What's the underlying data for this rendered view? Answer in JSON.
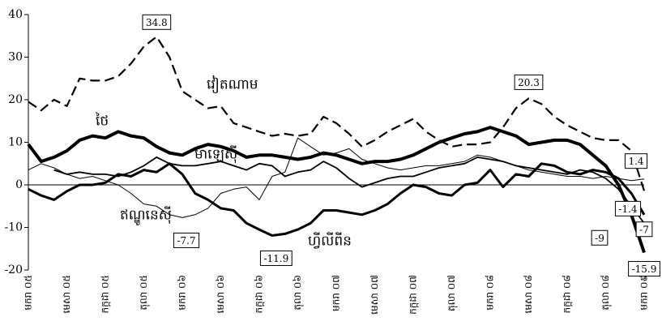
{
  "chart_data": {
    "type": "line",
    "categories": [
      "មករា ០៥",
      null,
      null,
      "មេសា ០៥",
      null,
      null,
      "កក្កដា ០៥",
      null,
      null,
      "តុលា ០៥",
      null,
      null,
      "មករា ០៦",
      null,
      null,
      "មេសា ០៦",
      null,
      null,
      "កក្កដា ០៦",
      null,
      null,
      "តុលា ០៦",
      null,
      null,
      "មករា ០៧",
      null,
      null,
      "មេសា ០៧",
      null,
      null,
      "កក្កដា ០៧",
      null,
      null,
      "តុលា ០៧",
      null,
      null,
      "មករា ០៨",
      null,
      null,
      "មេសា ០៨",
      null,
      null,
      "កក្កដា ០៨",
      null,
      null,
      "តុលា ០៨",
      null,
      null,
      "មករា ០៩"
    ],
    "ylim": [
      -20,
      40
    ],
    "yticks": [
      -20,
      -10,
      0,
      10,
      20,
      30,
      40
    ],
    "series": [
      {
        "name": "វៀតណាម",
        "color": "#000000",
        "line_width": 2.2,
        "dash": true,
        "values": [
          19.5,
          17.5,
          20,
          18.5,
          25,
          24.5,
          24.5,
          25.5,
          28.5,
          32.5,
          34.8,
          30,
          22,
          20,
          18,
          18.5,
          14.5,
          13.5,
          12.5,
          11.5,
          12,
          11.5,
          12,
          16,
          14.5,
          12,
          9,
          10.5,
          12.5,
          14,
          15.5,
          12.5,
          10.5,
          9,
          9.5,
          9.5,
          10,
          13.5,
          18,
          20.3,
          19,
          16,
          14,
          12.5,
          11,
          10.5,
          10.5,
          8,
          -1.4
        ]
      },
      {
        "name": "ថៃ",
        "color": "#000000",
        "line_width": 4,
        "dash": false,
        "values": [
          9.5,
          5.5,
          6.5,
          8,
          10.5,
          11.5,
          11,
          12.5,
          11.5,
          11,
          9,
          7.5,
          7,
          8.5,
          9.5,
          9,
          8,
          6.5,
          7,
          7,
          6.5,
          6,
          6.5,
          7.5,
          7,
          6,
          5,
          5.5,
          5.5,
          6,
          7,
          8.5,
          10,
          11,
          12,
          12.5,
          13.5,
          12.5,
          11.5,
          9.5,
          10,
          10.5,
          10.5,
          9.5,
          7,
          4.5,
          0,
          -7,
          -15.9
        ]
      },
      {
        "name": "ម៉ាឡេស៊ី",
        "color": "#000000",
        "line_width": 1.8,
        "dash": false,
        "values": [
          null,
          null,
          3.5,
          2.5,
          3,
          2.5,
          2.5,
          2,
          3,
          4.5,
          6.5,
          5,
          4.5,
          4.5,
          5,
          5.5,
          4.5,
          3.5,
          5,
          4.5,
          2,
          3,
          3.5,
          5.5,
          4,
          1.5,
          -0.5,
          0.5,
          1.5,
          2,
          2,
          3,
          4,
          4.5,
          5,
          6.5,
          6,
          5.5,
          4.5,
          4,
          3.5,
          3,
          2.5,
          3.5,
          3,
          1.5,
          -1,
          -5,
          -9.0
        ]
      },
      {
        "name": "ឥណ្ឌូនេស៊ី",
        "color": "#000000",
        "line_width": 1,
        "dash": false,
        "values": [
          3.5,
          5,
          4,
          2.5,
          1.5,
          2,
          1,
          0,
          -2,
          -4.5,
          -5,
          -7,
          -7.7,
          -7,
          -5.5,
          -2,
          -1,
          -0.5,
          -3.5,
          2,
          3,
          11,
          9,
          7,
          7.5,
          8.5,
          6,
          5,
          4,
          3.5,
          4,
          4.5,
          4.5,
          5,
          5.5,
          7,
          6.5,
          5.5,
          4.5,
          3.5,
          3,
          2.5,
          2,
          2,
          1.5,
          2,
          1.5,
          1,
          1.4
        ]
      },
      {
        "name": "ហ្វីលីពីន",
        "color": "#000000",
        "line_width": 3,
        "dash": false,
        "values": [
          -1,
          -2.5,
          -3.5,
          -1.5,
          0,
          0,
          0.5,
          2.5,
          2,
          3.5,
          3,
          5,
          2.5,
          -2,
          -3.5,
          -5.5,
          -6,
          -9,
          -10.5,
          -11.9,
          -11.5,
          -10.5,
          -9,
          -6,
          -6,
          -6.5,
          -7,
          -6,
          -4.5,
          -2,
          0,
          -0.5,
          -2,
          -2.5,
          0,
          0.5,
          3.5,
          -0.5,
          2.5,
          2,
          5,
          4.5,
          3,
          2.5,
          3.5,
          3,
          1.5,
          -2,
          -7.0
        ]
      }
    ]
  }
}
